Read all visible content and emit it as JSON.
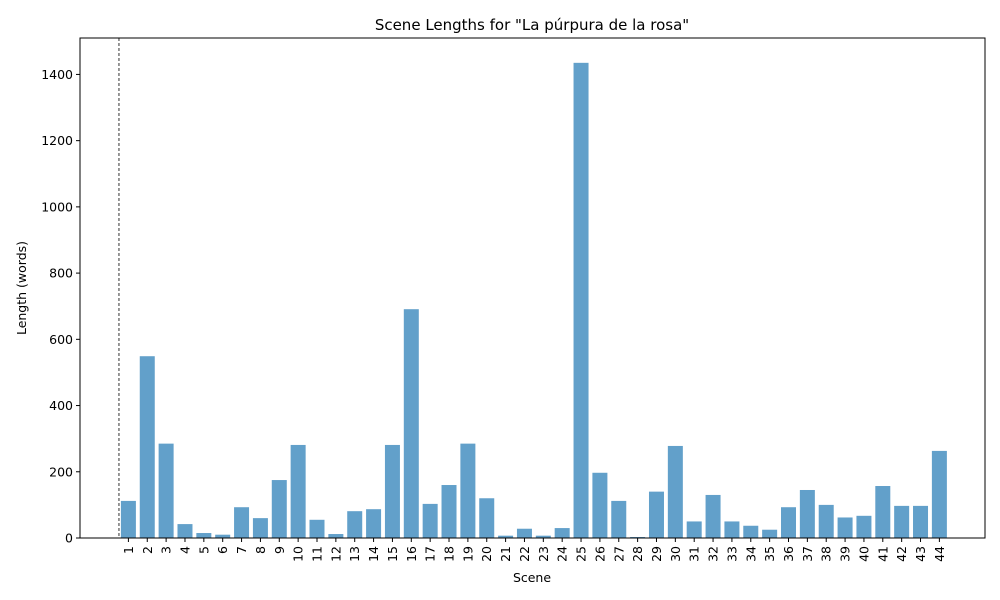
{
  "chart_data": {
    "type": "bar",
    "title": "Scene Lengths for \"La púrpura de la rosa\"",
    "xlabel": "Scene",
    "ylabel": "Length (words)",
    "categories": [
      "1",
      "2",
      "3",
      "4",
      "5",
      "6",
      "7",
      "8",
      "9",
      "10",
      "11",
      "12",
      "13",
      "14",
      "15",
      "16",
      "17",
      "18",
      "19",
      "20",
      "21",
      "22",
      "23",
      "24",
      "25",
      "26",
      "27",
      "28",
      "29",
      "30",
      "31",
      "32",
      "33",
      "34",
      "35",
      "36",
      "37",
      "38",
      "39",
      "40",
      "41",
      "42",
      "43",
      "44"
    ],
    "values": [
      112,
      549,
      285,
      42,
      15,
      10,
      93,
      60,
      175,
      281,
      55,
      12,
      81,
      87,
      281,
      691,
      103,
      160,
      285,
      120,
      7,
      28,
      7,
      30,
      1435,
      197,
      112,
      3,
      140,
      278,
      50,
      130,
      50,
      37,
      25,
      93,
      145,
      100,
      62,
      67,
      157,
      97,
      97,
      263
    ],
    "ylim": [
      0,
      1510
    ],
    "yticks": [
      0,
      200,
      400,
      600,
      800,
      1000,
      1200,
      1400
    ],
    "vline_category": "1",
    "bar_color": "#62a0ca",
    "grid": false
  }
}
